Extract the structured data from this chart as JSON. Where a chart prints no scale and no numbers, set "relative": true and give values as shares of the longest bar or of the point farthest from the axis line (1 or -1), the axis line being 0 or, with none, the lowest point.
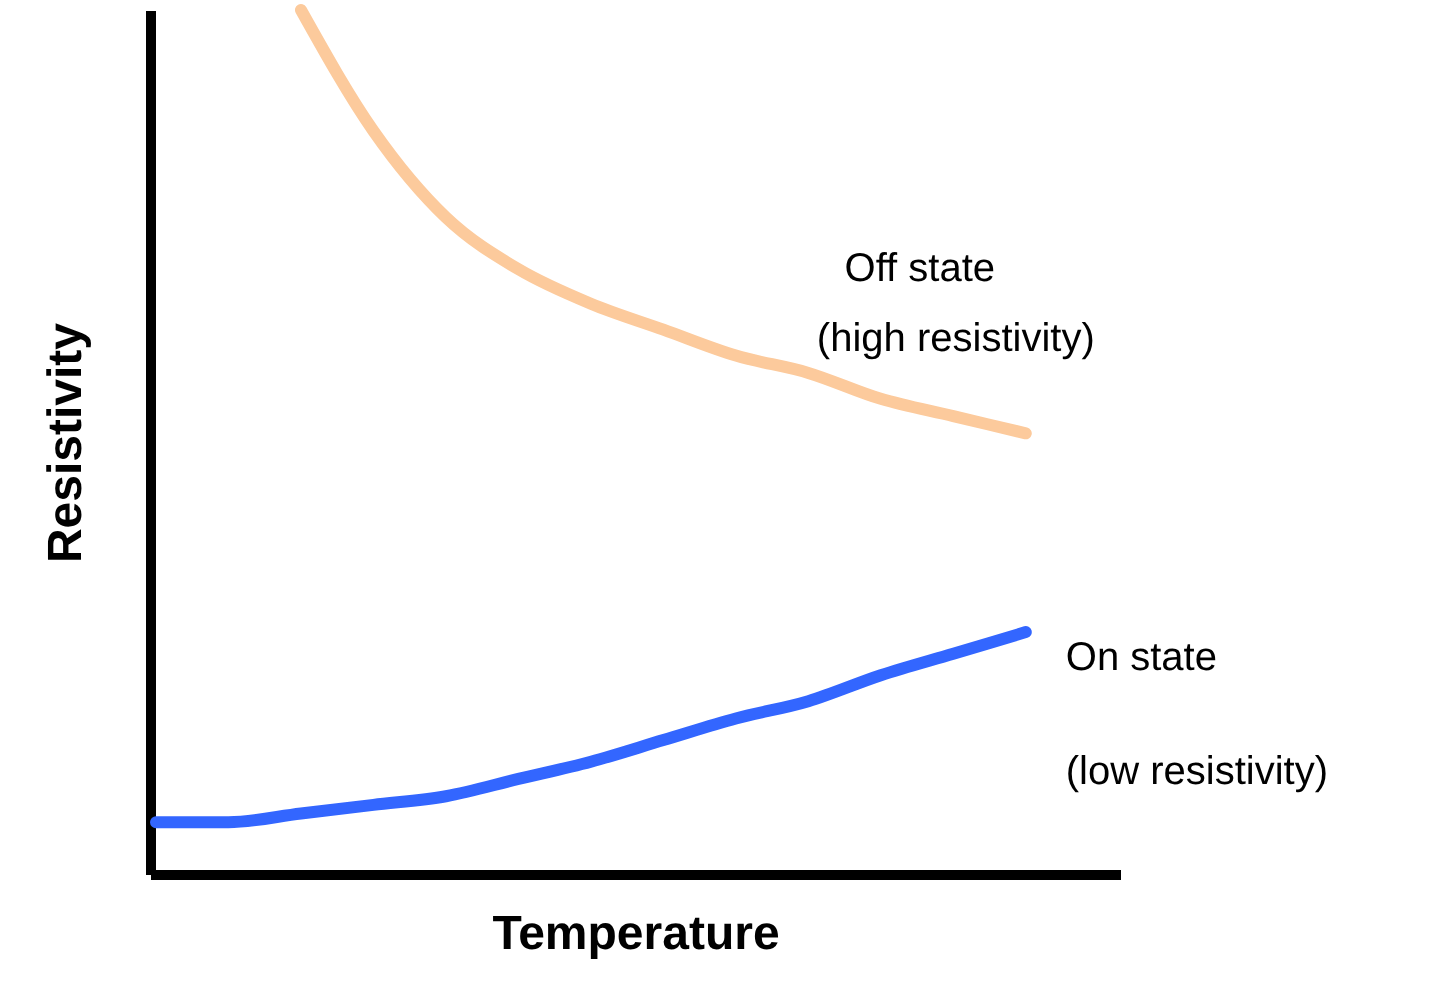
{
  "chart_data": {
    "type": "line",
    "relative": true,
    "xlabel": "Temperature",
    "ylabel": "Resistivity",
    "categories": [
      null,
      null,
      null,
      null,
      null,
      null,
      null,
      null,
      null,
      null,
      null,
      null,
      null
    ],
    "series": [
      {
        "name": "Off state",
        "color": "#fcca9c",
        "values": [
          null,
          null,
          1.0,
          0.86,
          0.76,
          0.7,
          0.66,
          0.63,
          0.6,
          0.58,
          0.55,
          0.53,
          0.51
        ]
      },
      {
        "name": "On state",
        "color": "#3366ff",
        "values": [
          0.06,
          0.06,
          0.07,
          0.08,
          0.09,
          0.11,
          0.13,
          0.155,
          0.18,
          0.2,
          0.23,
          0.255,
          0.28
        ]
      }
    ],
    "annotations": [
      "(high resistivity)",
      "(low resistivity)"
    ],
    "grid": false
  }
}
